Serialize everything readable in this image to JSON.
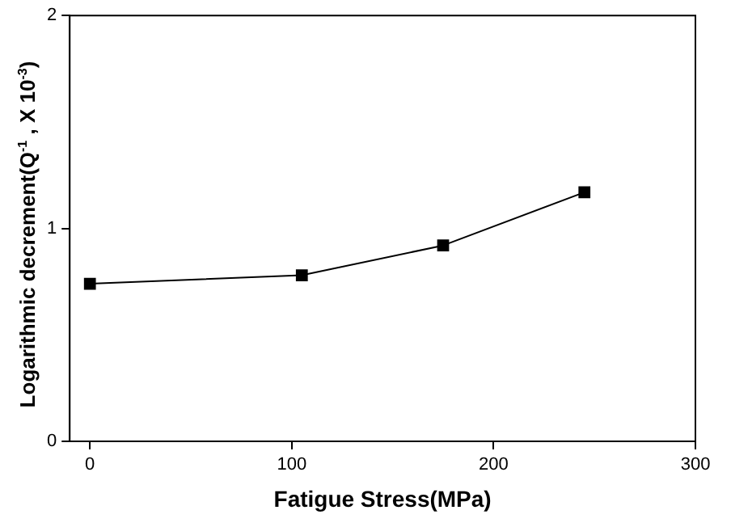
{
  "chart_data": {
    "type": "line",
    "xlabel": "Fatigue Stress(MPa)",
    "ylabel": "Logarithmic decrement(Q$^{-1}$ , X 10$^{-3}$)",
    "x": [
      0,
      105,
      175,
      245
    ],
    "series": [
      {
        "color": "#000000",
        "values": [
          0.74,
          0.78,
          0.92,
          1.17
        ]
      }
    ],
    "xlim": [
      -10,
      300
    ],
    "xticks": [
      0,
      100,
      200,
      300
    ],
    "ylim": [
      0,
      2
    ],
    "yticks": [
      0,
      1,
      2
    ],
    "marker": "square",
    "line_style": "solid",
    "grid": false,
    "legend": false
  }
}
